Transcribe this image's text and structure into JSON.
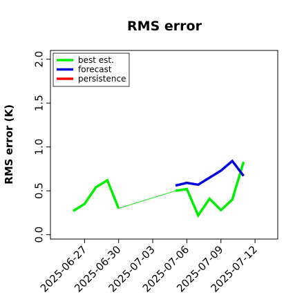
{
  "chart_data": {
    "type": "line",
    "title": "RMS error",
    "xlabel": "",
    "ylabel": "RMS error (K)",
    "ylim": [
      -0.05,
      2.1
    ],
    "xlim": [
      "2025-06-24",
      "2025-07-14"
    ],
    "yticks": [
      0.0,
      0.5,
      1.0,
      1.5,
      2.0
    ],
    "ytick_labels": [
      "0.0",
      "0.5",
      "1.0",
      "1.5",
      "2.0"
    ],
    "xticks": [
      "2025-06-27",
      "2025-06-30",
      "2025-07-03",
      "2025-07-06",
      "2025-07-09",
      "2025-07-12"
    ],
    "xtick_labels": [
      "2025-06-27",
      "2025-06-30",
      "2025-07-03",
      "2025-07-06",
      "2025-07-09",
      "2025-07-12"
    ],
    "xtick_colors": [
      "#000000",
      "#000000",
      "#228b22",
      "#000000",
      "#000000",
      "#000000"
    ],
    "legend_position": "upper-left",
    "series": [
      {
        "name": "best est.",
        "color": "#00ee00",
        "segments": [
          {
            "points": [
              [
                "2025-06-26",
                0.27
              ],
              [
                "2025-06-27",
                0.35
              ],
              [
                "2025-06-28",
                0.54
              ],
              [
                "2025-06-29",
                0.62
              ],
              [
                "2025-06-30",
                0.3
              ]
            ]
          },
          {
            "thin": true,
            "points": [
              [
                "2025-06-30",
                0.3
              ],
              [
                "2025-07-05",
                0.5
              ]
            ]
          },
          {
            "points": [
              [
                "2025-07-05",
                0.5
              ],
              [
                "2025-07-06",
                0.52
              ],
              [
                "2025-07-07",
                0.22
              ],
              [
                "2025-07-08",
                0.41
              ],
              [
                "2025-07-09",
                0.28
              ],
              [
                "2025-07-10",
                0.4
              ],
              [
                "2025-07-11",
                0.83
              ]
            ]
          }
        ]
      },
      {
        "name": "forecast",
        "color": "#0000dd",
        "segments": [
          {
            "points": [
              [
                "2025-07-05",
                0.56
              ],
              [
                "2025-07-06",
                0.59
              ],
              [
                "2025-07-07",
                0.57
              ],
              [
                "2025-07-08",
                0.65
              ],
              [
                "2025-07-09",
                0.73
              ],
              [
                "2025-07-10",
                0.84
              ],
              [
                "2025-07-11",
                0.67
              ]
            ]
          }
        ]
      },
      {
        "name": "persistence",
        "color": "#ff0000",
        "segments": []
      }
    ]
  }
}
